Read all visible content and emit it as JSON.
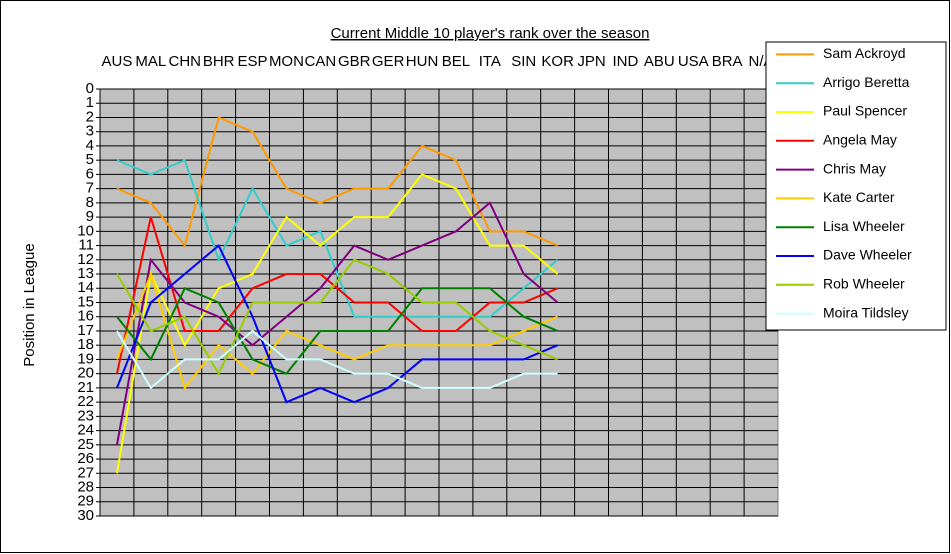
{
  "chart_data": {
    "type": "line",
    "title": "Current Middle 10 player's rank over the season",
    "y_label": "Position in League",
    "categories": [
      "AUS",
      "MAL",
      "CHN",
      "BHR",
      "ESP",
      "MON",
      "CAN",
      "GBR",
      "GER",
      "HUN",
      "BEL",
      "ITA",
      "SIN",
      "KOR",
      "JPN",
      "IND",
      "ABU",
      "USA",
      "BRA",
      "N/A"
    ],
    "ylim": [
      0,
      30
    ],
    "y_reversed": true,
    "grid": true,
    "legend": "right",
    "yticks": [
      0,
      1,
      2,
      3,
      4,
      5,
      6,
      7,
      8,
      9,
      10,
      11,
      12,
      13,
      14,
      15,
      16,
      17,
      18,
      19,
      20,
      21,
      22,
      23,
      24,
      25,
      26,
      27,
      28,
      29,
      30
    ],
    "series": [
      {
        "name": "Sam Ackroyd",
        "color": "#ff9900",
        "values": [
          7,
          8,
          11,
          2,
          3,
          7,
          8,
          7,
          7,
          4,
          5,
          10,
          10,
          11,
          null,
          null,
          null,
          null,
          null,
          null
        ]
      },
      {
        "name": "Arrigo Beretta",
        "color": "#33cccc",
        "values": [
          5,
          6,
          5,
          12,
          7,
          11,
          10,
          16,
          16,
          16,
          16,
          16,
          14,
          12,
          null,
          null,
          null,
          null,
          null,
          null
        ]
      },
      {
        "name": "Paul Spencer",
        "color": "#ffff00",
        "values": [
          27,
          13,
          18,
          14,
          13,
          9,
          11,
          9,
          9,
          6,
          7,
          11,
          11,
          13,
          null,
          null,
          null,
          null,
          null,
          null
        ]
      },
      {
        "name": "Angela May",
        "color": "#ff0000",
        "values": [
          20,
          9,
          17,
          17,
          14,
          13,
          13,
          15,
          15,
          17,
          17,
          15,
          15,
          14,
          null,
          null,
          null,
          null,
          null,
          null
        ]
      },
      {
        "name": "Chris May",
        "color": "#800080",
        "values": [
          25,
          12,
          15,
          16,
          18,
          16,
          14,
          11,
          12,
          11,
          10,
          8,
          13,
          15,
          null,
          null,
          null,
          null,
          null,
          null
        ]
      },
      {
        "name": "Kate Carter",
        "color": "#ffcc00",
        "values": [
          19,
          13,
          21,
          18,
          20,
          17,
          18,
          19,
          18,
          18,
          18,
          18,
          17,
          16,
          null,
          null,
          null,
          null,
          null,
          null
        ]
      },
      {
        "name": "Lisa Wheeler",
        "color": "#008000",
        "values": [
          16,
          19,
          14,
          15,
          19,
          20,
          17,
          17,
          17,
          14,
          14,
          14,
          16,
          17,
          null,
          null,
          null,
          null,
          null,
          null
        ]
      },
      {
        "name": "Dave Wheeler",
        "color": "#0000ff",
        "values": [
          21,
          15,
          13,
          11,
          16,
          22,
          21,
          22,
          21,
          19,
          19,
          19,
          19,
          18,
          null,
          null,
          null,
          null,
          null,
          null
        ]
      },
      {
        "name": "Rob Wheeler",
        "color": "#99cc00",
        "values": [
          13,
          17,
          16,
          20,
          15,
          15,
          15,
          12,
          13,
          15,
          15,
          17,
          18,
          19,
          null,
          null,
          null,
          null,
          null,
          null
        ]
      },
      {
        "name": "Moira Tildsley",
        "color": "#ccffff",
        "values": [
          17,
          21,
          19,
          19,
          17,
          19,
          19,
          20,
          20,
          21,
          21,
          21,
          20,
          20,
          null,
          null,
          null,
          null,
          null,
          null
        ]
      }
    ]
  }
}
